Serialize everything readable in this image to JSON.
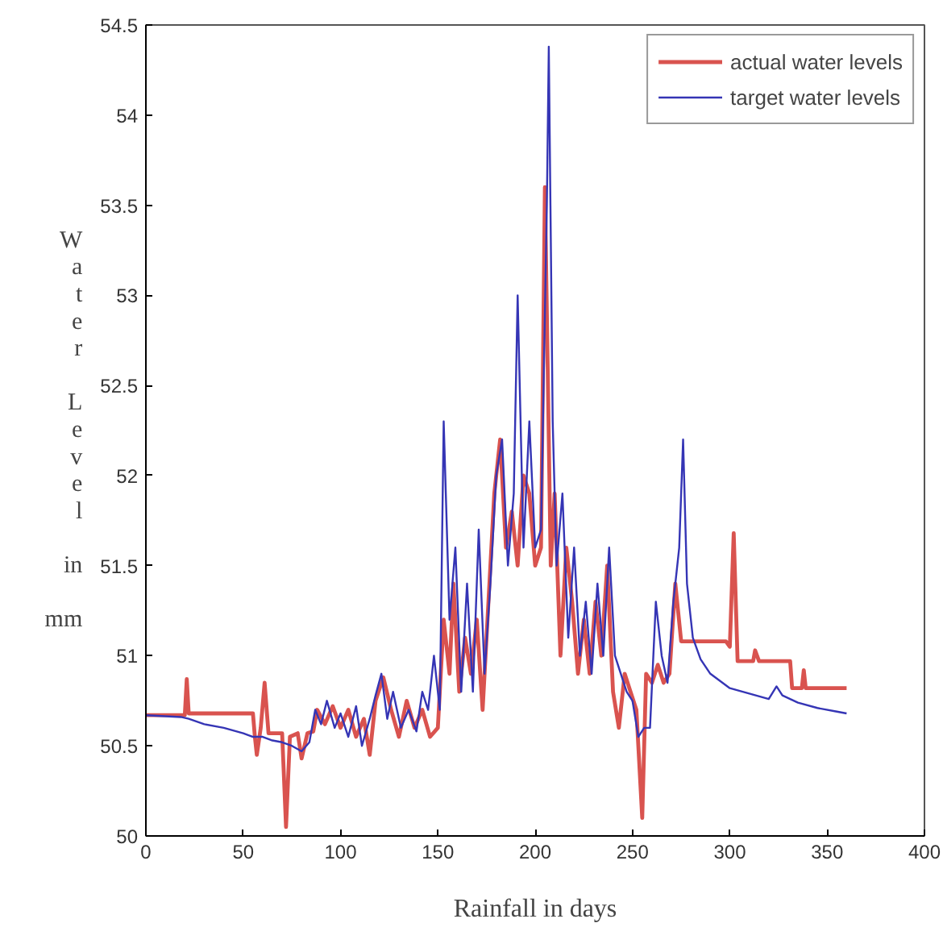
{
  "chart_data": {
    "type": "line",
    "xlabel": "Rainfall in days",
    "ylabel": "Water Level in mm",
    "xlim": [
      0,
      400
    ],
    "ylim": [
      50,
      54.5
    ],
    "xticks": [
      0,
      50,
      100,
      150,
      200,
      250,
      300,
      350,
      400
    ],
    "yticks": [
      50,
      50.5,
      51,
      51.5,
      52,
      52.5,
      53,
      53.5,
      54,
      54.5
    ],
    "grid": false,
    "legend": "top right",
    "series": [
      {
        "name": "actual water levels",
        "color": "#d9534f",
        "x": [
          0,
          20,
          21,
          22,
          55,
          56,
          57,
          59,
          61,
          63,
          70,
          72,
          74,
          78,
          80,
          83,
          86,
          88,
          92,
          96,
          100,
          104,
          108,
          112,
          115,
          118,
          122,
          126,
          130,
          134,
          138,
          142,
          146,
          150,
          153,
          156,
          158,
          161,
          164,
          167,
          170,
          173,
          176,
          179,
          182,
          185,
          188,
          191,
          194,
          197,
          200,
          203,
          205,
          208,
          210,
          213,
          216,
          219,
          222,
          225,
          228,
          231,
          234,
          237,
          240,
          243,
          246,
          249,
          252,
          255,
          257,
          260,
          263,
          266,
          269,
          272,
          275,
          298,
          300,
          302,
          304,
          312,
          313,
          315,
          331,
          332,
          337,
          338,
          339,
          360
        ],
        "values": [
          50.67,
          50.67,
          50.87,
          50.68,
          50.68,
          50.55,
          50.45,
          50.6,
          50.85,
          50.57,
          50.57,
          50.05,
          50.55,
          50.57,
          50.43,
          50.57,
          50.58,
          50.7,
          50.62,
          50.72,
          50.6,
          50.7,
          50.55,
          50.65,
          50.45,
          50.75,
          50.88,
          50.7,
          50.55,
          50.75,
          50.6,
          50.7,
          50.55,
          50.6,
          51.2,
          50.9,
          51.4,
          50.8,
          51.1,
          50.9,
          51.2,
          50.7,
          51.3,
          51.9,
          52.2,
          51.6,
          51.8,
          51.5,
          52.0,
          51.9,
          51.5,
          51.6,
          53.6,
          51.5,
          51.9,
          51.0,
          51.6,
          51.3,
          50.9,
          51.2,
          50.9,
          51.3,
          51.0,
          51.5,
          50.8,
          50.6,
          50.9,
          50.8,
          50.7,
          50.1,
          50.9,
          50.85,
          50.95,
          50.85,
          50.9,
          51.4,
          51.08,
          51.08,
          51.05,
          51.68,
          50.97,
          50.97,
          51.03,
          50.97,
          50.97,
          50.82,
          50.82,
          50.92,
          50.82,
          50.82
        ]
      },
      {
        "name": "target water levels",
        "color": "#3535b5",
        "x": [
          0,
          18,
          22,
          30,
          40,
          50,
          55,
          60,
          65,
          70,
          75,
          80,
          84,
          87,
          90,
          93,
          97,
          100,
          104,
          108,
          111,
          115,
          118,
          121,
          124,
          127,
          131,
          135,
          139,
          142,
          145,
          148,
          151,
          153,
          156,
          159,
          162,
          165,
          168,
          171,
          174,
          177,
          180,
          183,
          186,
          189,
          191,
          194,
          197,
          200,
          203,
          206,
          207,
          209,
          211,
          214,
          217,
          220,
          223,
          226,
          229,
          232,
          235,
          238,
          241,
          244,
          247,
          250,
          253,
          256,
          259,
          262,
          265,
          268,
          271,
          274,
          276,
          278,
          281,
          285,
          290,
          295,
          300,
          310,
          320,
          324,
          327,
          335,
          345,
          355,
          360
        ],
        "values": [
          50.67,
          50.66,
          50.65,
          50.62,
          50.6,
          50.57,
          50.55,
          50.55,
          50.53,
          50.52,
          50.5,
          50.47,
          50.52,
          50.7,
          50.62,
          50.75,
          50.6,
          50.68,
          50.55,
          50.72,
          50.5,
          50.65,
          50.78,
          50.9,
          50.65,
          50.8,
          50.6,
          50.7,
          50.58,
          50.8,
          50.7,
          51.0,
          50.7,
          52.3,
          51.2,
          51.6,
          50.8,
          51.4,
          50.8,
          51.7,
          50.9,
          51.4,
          52.0,
          52.2,
          51.5,
          51.9,
          53.0,
          51.6,
          52.3,
          51.6,
          51.7,
          53.5,
          54.38,
          52.3,
          51.5,
          51.9,
          51.1,
          51.6,
          51.0,
          51.3,
          50.9,
          51.4,
          51.0,
          51.6,
          51.0,
          50.9,
          50.8,
          50.75,
          50.55,
          50.6,
          50.6,
          51.3,
          51.0,
          50.85,
          51.3,
          51.6,
          52.2,
          51.4,
          51.1,
          50.98,
          50.9,
          50.86,
          50.82,
          50.79,
          50.76,
          50.83,
          50.78,
          50.74,
          50.71,
          50.69,
          50.68
        ]
      }
    ]
  }
}
